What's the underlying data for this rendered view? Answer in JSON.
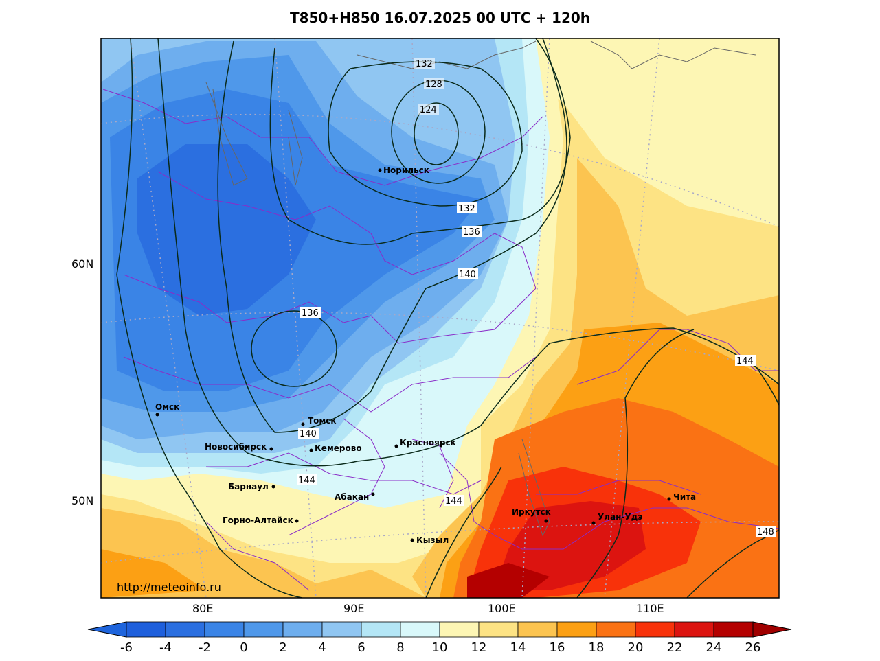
{
  "title": "T850+H850 16.07.2025 00 UTC + 120h",
  "source_url": "http://meteoinfo.ru",
  "latitude_labels": [
    "60N",
    "50N"
  ],
  "longitude_labels": [
    "80E",
    "90E",
    "100E",
    "110E"
  ],
  "cities": [
    "Норильск",
    "Омск",
    "Томск",
    "Новосибирск",
    "Кемерово",
    "Красноярск",
    "Барнаул",
    "Абакан",
    "Горно-Алтайск",
    "Кызыл",
    "Иркутск",
    "Улан-Удэ",
    "Чита"
  ],
  "contour_labels": [
    "132",
    "128",
    "124",
    "132",
    "136",
    "140",
    "136",
    "140",
    "144",
    "144",
    "144",
    "148"
  ],
  "colorbar": {
    "labels": [
      "-6",
      "-4",
      "-2",
      "0",
      "2",
      "4",
      "6",
      "8",
      "10",
      "12",
      "14",
      "16",
      "18",
      "20",
      "22",
      "24",
      "26"
    ],
    "colors": [
      "#1e5fdc",
      "#2b6fe0",
      "#3a84e6",
      "#4f98ea",
      "#6eaeee",
      "#90c6f2",
      "#b4e6f6",
      "#d9f8fa",
      "#fdf6b4",
      "#fde384",
      "#fcc450",
      "#fca014",
      "#fa7214",
      "#f8320a",
      "#dc1410",
      "#b40000"
    ],
    "low_extend_color": "#1e64dc",
    "high_extend_color": "#a00000"
  }
}
